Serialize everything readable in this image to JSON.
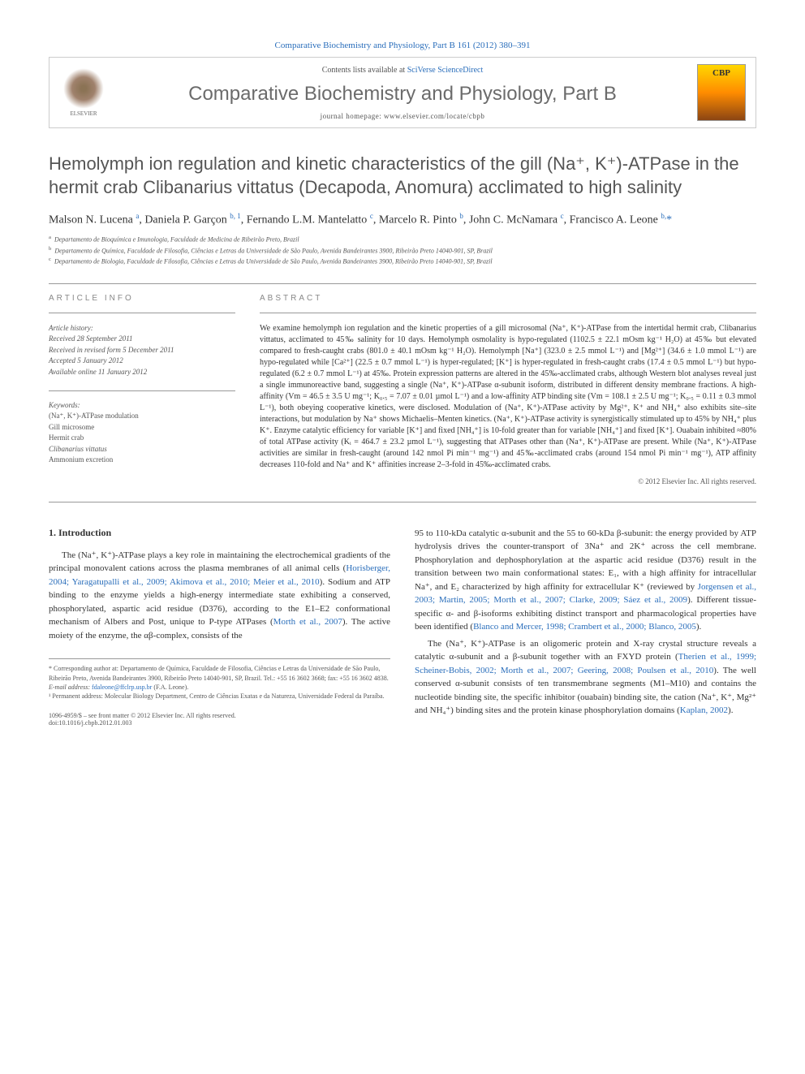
{
  "top_link": "Comparative Biochemistry and Physiology, Part B 161 (2012) 380–391",
  "header": {
    "contents_prefix": "Contents lists available at ",
    "contents_link": "SciVerse ScienceDirect",
    "journal_name": "Comparative Biochemistry and Physiology, Part B",
    "homepage_label": "journal homepage: www.elsevier.com/locate/cbpb",
    "elsevier_label": "ELSEVIER",
    "cbp_label": "CBP"
  },
  "article": {
    "title": "Hemolymph ion regulation and kinetic characteristics of the gill (Na⁺, K⁺)-ATPase in the hermit crab Clibanarius vittatus (Decapoda, Anomura) acclimated to high salinity",
    "authors_html": "Malson N. Lucena <sup>a</sup>, Daniela P. Garçon <sup>b, 1</sup>, Fernando L.M. Mantelatto <sup>c</sup>, Marcelo R. Pinto <sup>b</sup>, John C. McNamara <sup>c</sup>, Francisco A. Leone <sup>b,</sup><span class='asterisk'>*</span>",
    "affiliations": [
      "Departamento de Bioquímica e Imunologia, Faculdade de Medicina de Ribeirão Preto, Brazil",
      "Departamento de Química, Faculdade de Filosofia, Ciências e Letras da Universidade de São Paulo, Avenida Bandeirantes 3900, Ribeirão Preto 14040-901, SP, Brazil",
      "Departamento de Biologia, Faculdade de Filosofia, Ciências e Letras da Universidade de São Paulo, Avenida Bandeirantes 3900, Ribeirão Preto 14040-901, SP, Brazil"
    ]
  },
  "info": {
    "label": "ARTICLE INFO",
    "history_label": "Article history:",
    "history": [
      "Received 28 September 2011",
      "Received in revised form 5 December 2011",
      "Accepted 5 January 2012",
      "Available online 11 January 2012"
    ],
    "keywords_label": "Keywords:",
    "keywords": [
      "(Na⁺, K⁺)-ATPase modulation",
      "Gill microsome",
      "Hermit crab",
      "Clibanarius vittatus",
      "Ammonium excretion"
    ]
  },
  "abstract": {
    "label": "ABSTRACT",
    "text": "We examine hemolymph ion regulation and the kinetic properties of a gill microsomal (Na⁺, K⁺)-ATPase from the intertidal hermit crab, Clibanarius vittatus, acclimated to 45‰ salinity for 10 days. Hemolymph osmolality is hypo-regulated (1102.5 ± 22.1 mOsm kg⁻¹ H₂O) at 45‰ but elevated compared to fresh-caught crabs (801.0 ± 40.1 mOsm kg⁻¹ H₂O). Hemolymph [Na⁺] (323.0 ± 2.5 mmol L⁻¹) and [Mg²⁺] (34.6 ± 1.0 mmol L⁻¹) are hypo-regulated while [Ca²⁺] (22.5 ± 0.7 mmol L⁻¹) is hyper-regulated; [K⁺] is hyper-regulated in fresh-caught crabs (17.4 ± 0.5 mmol L⁻¹) but hypo-regulated (6.2 ± 0.7 mmol L⁻¹) at 45‰. Protein expression patterns are altered in the 45‰-acclimated crabs, although Western blot analyses reveal just a single immunoreactive band, suggesting a single (Na⁺, K⁺)-ATPase α-subunit isoform, distributed in different density membrane fractions. A high-affinity (Vm = 46.5 ± 3.5 U mg⁻¹; K₀.₅ = 7.07 ± 0.01 µmol L⁻¹) and a low-affinity ATP binding site (Vm = 108.1 ± 2.5 U mg⁻¹; K₀.₅ = 0.11 ± 0.3 mmol L⁻¹), both obeying cooperative kinetics, were disclosed. Modulation of (Na⁺, K⁺)-ATPase activity by Mg²⁺, K⁺ and NH₄⁺ also exhibits site–site interactions, but modulation by Na⁺ shows Michaelis–Menten kinetics. (Na⁺, K⁺)-ATPase activity is synergistically stimulated up to 45% by NH₄⁺ plus K⁺. Enzyme catalytic efficiency for variable [K⁺] and fixed [NH₄⁺] is 10-fold greater than for variable [NH₄⁺] and fixed [K⁺]. Ouabain inhibited ≈80% of total ATPase activity (Kᵢ = 464.7 ± 23.2 µmol L⁻¹), suggesting that ATPases other than (Na⁺, K⁺)-ATPase are present. While (Na⁺, K⁺)-ATPase activities are similar in fresh-caught (around 142 nmol Pi min⁻¹ mg⁻¹) and 45‰-acclimated crabs (around 154 nmol Pi min⁻¹ mg⁻¹), ATP affinity decreases 110-fold and Na⁺ and K⁺ affinities increase 2–3-fold in 45‰-acclimated crabs.",
    "copyright": "© 2012 Elsevier Inc. All rights reserved."
  },
  "body": {
    "intro_heading": "1. Introduction",
    "col1_p1": "The (Na⁺, K⁺)-ATPase plays a key role in maintaining the electrochemical gradients of the principal monovalent cations across the plasma membranes of all animal cells (",
    "col1_p1_link": "Horisberger, 2004; Yaragatupalli et al., 2009; Akimova et al., 2010; Meier et al., 2010",
    "col1_p1_cont": "). Sodium and ATP binding to the enzyme yields a high-energy intermediate state exhibiting a conserved, phosphorylated, aspartic acid residue (D376), according to the E1–E2 conformational mechanism of Albers and Post, unique to P-type ATPases (",
    "col1_p1_link2": "Morth et al., 2007",
    "col1_p1_end": "). The active moiety of the enzyme, the αβ-complex, consists of the",
    "col2_p1": "95 to 110-kDa catalytic α-subunit and the 55 to 60-kDa β-subunit: the energy provided by ATP hydrolysis drives the counter-transport of 3Na⁺ and 2K⁺ across the cell membrane. Phosphorylation and dephosphorylation at the aspartic acid residue (D376) result in the transition between two main conformational states: E₁, with a high affinity for intracellular Na⁺, and E₂ characterized by high affinity for extracellular K⁺ (reviewed by ",
    "col2_p1_link": "Jorgensen et al., 2003; Martin, 2005; Morth et al., 2007; Clarke, 2009; Sáez et al., 2009",
    "col2_p1_cont": "). Different tissue-specific α- and β-isoforms exhibiting distinct transport and pharmacological properties have been identified (",
    "col2_p1_link2": "Blanco and Mercer, 1998; Crambert et al., 2000; Blanco, 2005",
    "col2_p1_end": ").",
    "col2_p2": "The (Na⁺, K⁺)-ATPase is an oligomeric protein and X-ray crystal structure reveals a catalytic α-subunit and a β-subunit together with an FXYD protein (",
    "col2_p2_link": "Therien et al., 1999; Scheiner-Bobis, 2002; Morth et al., 2007; Geering, 2008; Poulsen et al., 2010",
    "col2_p2_cont": "). The well conserved α-subunit consists of ten transmembrane segments (M1–M10) and contains the nucleotide binding site, the specific inhibitor (ouabain) binding site, the cation (Na⁺, K⁺, Mg²⁺ and NH₄⁺) binding sites and the protein kinase phosphorylation domains (",
    "col2_p2_link2": "Kaplan, 2002",
    "col2_p2_end": ")."
  },
  "footnotes": {
    "corresponding": "* Corresponding author at: Departamento de Química, Faculdade de Filosofia, Ciências e Letras da Universidade de São Paulo, Ribeirão Preto, Avenida Bandeirantes 3900, Ribeirão Preto 14040-901, SP, Brazil. Tel.: +55 16 3602 3668; fax: +55 16 3602 4838.",
    "email_label": "E-mail address: ",
    "email": "fdaleone@ffclrp.usp.br",
    "email_suffix": " (F.A. Leone).",
    "permanent": "¹ Permanent address: Molecular Biology Department, Centro de Ciências Exatas e da Natureza, Universidade Federal da Paraíba."
  },
  "doi": {
    "line1": "1096-4959/$ – see front matter © 2012 Elsevier Inc. All rights reserved.",
    "line2": "doi:10.1016/j.cbpb.2012.01.003"
  },
  "colors": {
    "link": "#2a6ebb",
    "heading": "#555",
    "text": "#333",
    "muted": "#888"
  }
}
